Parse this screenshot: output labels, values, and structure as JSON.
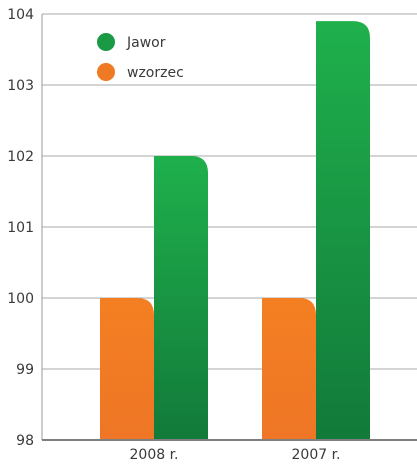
{
  "chart_data": {
    "type": "bar",
    "categories": [
      "2008 r.",
      "2007 r."
    ],
    "series": [
      {
        "name": "wzorzec",
        "values": [
          100,
          100
        ],
        "color": "#f07a24"
      },
      {
        "name": "Jawor",
        "values": [
          102,
          103.9
        ],
        "color": "#1a9a45"
      }
    ],
    "ylim": [
      98,
      104
    ],
    "yticks": [
      "98",
      "99",
      "100",
      "101",
      "102",
      "103",
      "104"
    ],
    "grid": true,
    "legend": {
      "position": "top-left",
      "entries": [
        {
          "label": "Jawor",
          "color": "#1a9a45"
        },
        {
          "label": "wzorzec",
          "color": "#f07a24"
        }
      ]
    }
  }
}
